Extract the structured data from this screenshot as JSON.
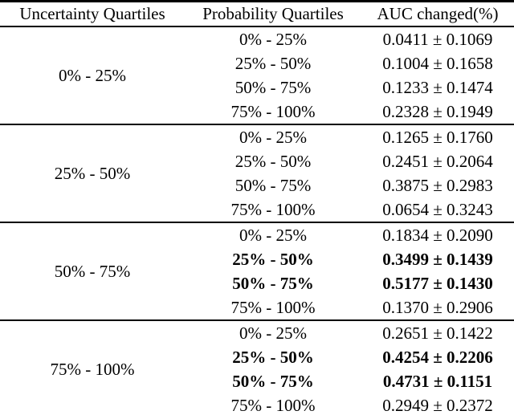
{
  "table": {
    "background": "#ffffff",
    "text_color": "#000000",
    "rule_color": "#000000",
    "headers": {
      "uncertainty": "Uncertainty Quartiles",
      "probability": "Probability Quartiles",
      "auc": "AUC changed(%)"
    },
    "groups": [
      {
        "uncertainty": "0% - 25%",
        "rows": [
          {
            "prob": "0% - 25%",
            "auc": "0.0411 ± 0.1069",
            "weight": "normal"
          },
          {
            "prob": "25% - 50%",
            "auc": "0.1004 ± 0.1658",
            "weight": "normal"
          },
          {
            "prob": "50% - 75%",
            "auc": "0.1233 ± 0.1474",
            "weight": "normal"
          },
          {
            "prob": "75% - 100%",
            "auc": "0.2328 ± 0.1949",
            "weight": "normal"
          }
        ]
      },
      {
        "uncertainty": "25% - 50%",
        "rows": [
          {
            "prob": "0% - 25%",
            "auc": "0.1265 ± 0.1760",
            "weight": "normal"
          },
          {
            "prob": "25% - 50%",
            "auc": "0.2451 ± 0.2064",
            "weight": "normal"
          },
          {
            "prob": "50% - 75%",
            "auc": "0.3875 ± 0.2983",
            "weight": "normal"
          },
          {
            "prob": "75% - 100%",
            "auc": "0.0654 ± 0.3243",
            "weight": "normal"
          }
        ]
      },
      {
        "uncertainty": "50% - 75%",
        "rows": [
          {
            "prob": "0% - 25%",
            "auc": "0.1834 ± 0.2090",
            "weight": "normal"
          },
          {
            "prob": "25% - 50%",
            "auc": "0.3499 ± 0.1439",
            "weight": "bold"
          },
          {
            "prob": "50% - 75%",
            "auc": "0.5177 ± 0.1430",
            "weight": "bold"
          },
          {
            "prob": "75% - 100%",
            "auc": "0.1370 ± 0.2906",
            "weight": "normal"
          }
        ]
      },
      {
        "uncertainty": "75% - 100%",
        "rows": [
          {
            "prob": "0% - 25%",
            "auc": "0.2651 ± 0.1422",
            "weight": "normal"
          },
          {
            "prob": "25% - 50%",
            "auc": "0.4254 ± 0.2206",
            "weight": "bold"
          },
          {
            "prob": "50% - 75%",
            "auc": "0.4731 ± 0.1151",
            "weight": "bold"
          },
          {
            "prob": "75% - 100%",
            "auc": "0.2949 ± 0.2372",
            "weight": "normal"
          }
        ]
      }
    ]
  }
}
